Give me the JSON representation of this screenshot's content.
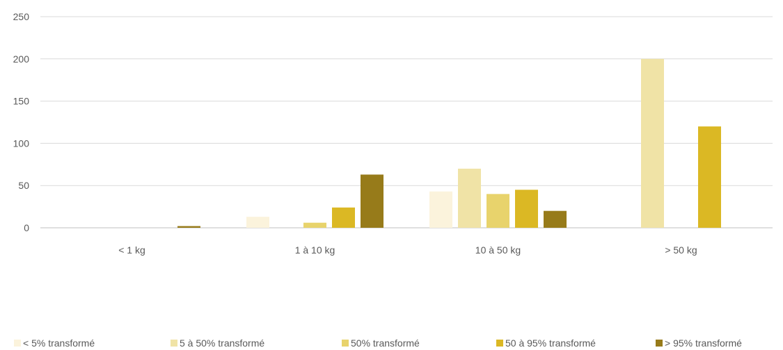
{
  "chart_data": {
    "type": "bar",
    "categories": [
      "< 1 kg",
      "1 à 10 kg",
      "10 à 50 kg",
      "> 50 kg"
    ],
    "series": [
      {
        "name": "< 5% transformé",
        "color": "#fbf3dc",
        "values": [
          0,
          13,
          43,
          0
        ]
      },
      {
        "name": "5 à 50% transformé",
        "color": "#f0e3a6",
        "values": [
          0,
          0,
          70,
          200
        ]
      },
      {
        "name": "50% transformé",
        "color": "#e8d36c",
        "values": [
          0,
          6,
          40,
          0
        ]
      },
      {
        "name": "50 à 95% transformé",
        "color": "#dbb824",
        "values": [
          0,
          24,
          45,
          120
        ]
      },
      {
        "name": "> 95% transformé",
        "color": "#977b1a",
        "values": [
          2,
          63,
          20,
          0
        ]
      }
    ],
    "y_ticks": [
      "0",
      "50",
      "100",
      "150",
      "200",
      "250"
    ],
    "ylim": [
      0,
      250
    ],
    "grid": true,
    "legend_position": "bottom",
    "title": "",
    "xlabel": "",
    "ylabel": ""
  }
}
